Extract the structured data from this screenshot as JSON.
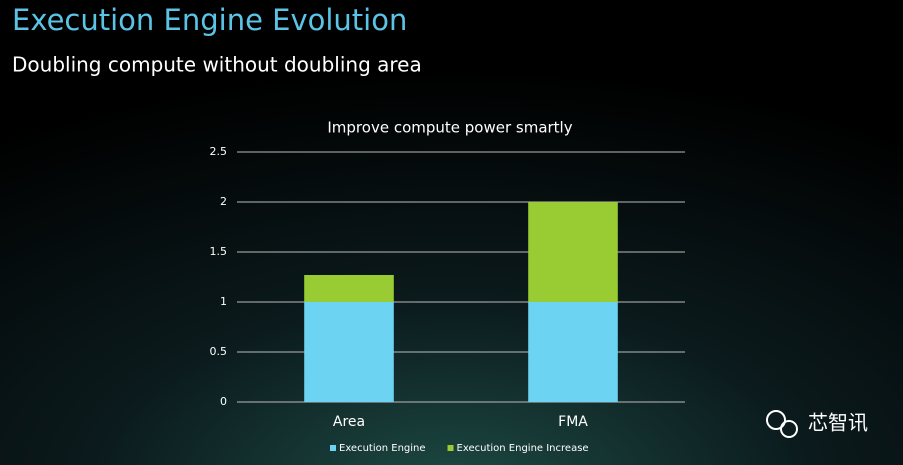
{
  "slide": {
    "title": "Execution Engine Evolution",
    "subtitle": "Doubling compute without doubling area",
    "watermark": "芯智讯"
  },
  "chart_data": {
    "type": "bar",
    "stacked": true,
    "title": "Improve compute power smartly",
    "categories": [
      "Area",
      "FMA"
    ],
    "series": [
      {
        "name": "Execution Engine",
        "color": "#6dd3f2",
        "values": [
          1,
          1
        ]
      },
      {
        "name": "Execution Engine Increase",
        "color": "#99cc33",
        "values": [
          0.27,
          1
        ]
      }
    ],
    "ylim": [
      0,
      2.5
    ],
    "yticks": [
      0,
      0.5,
      1,
      1.5,
      2,
      2.5
    ],
    "grid": true,
    "legend": "bottom"
  }
}
